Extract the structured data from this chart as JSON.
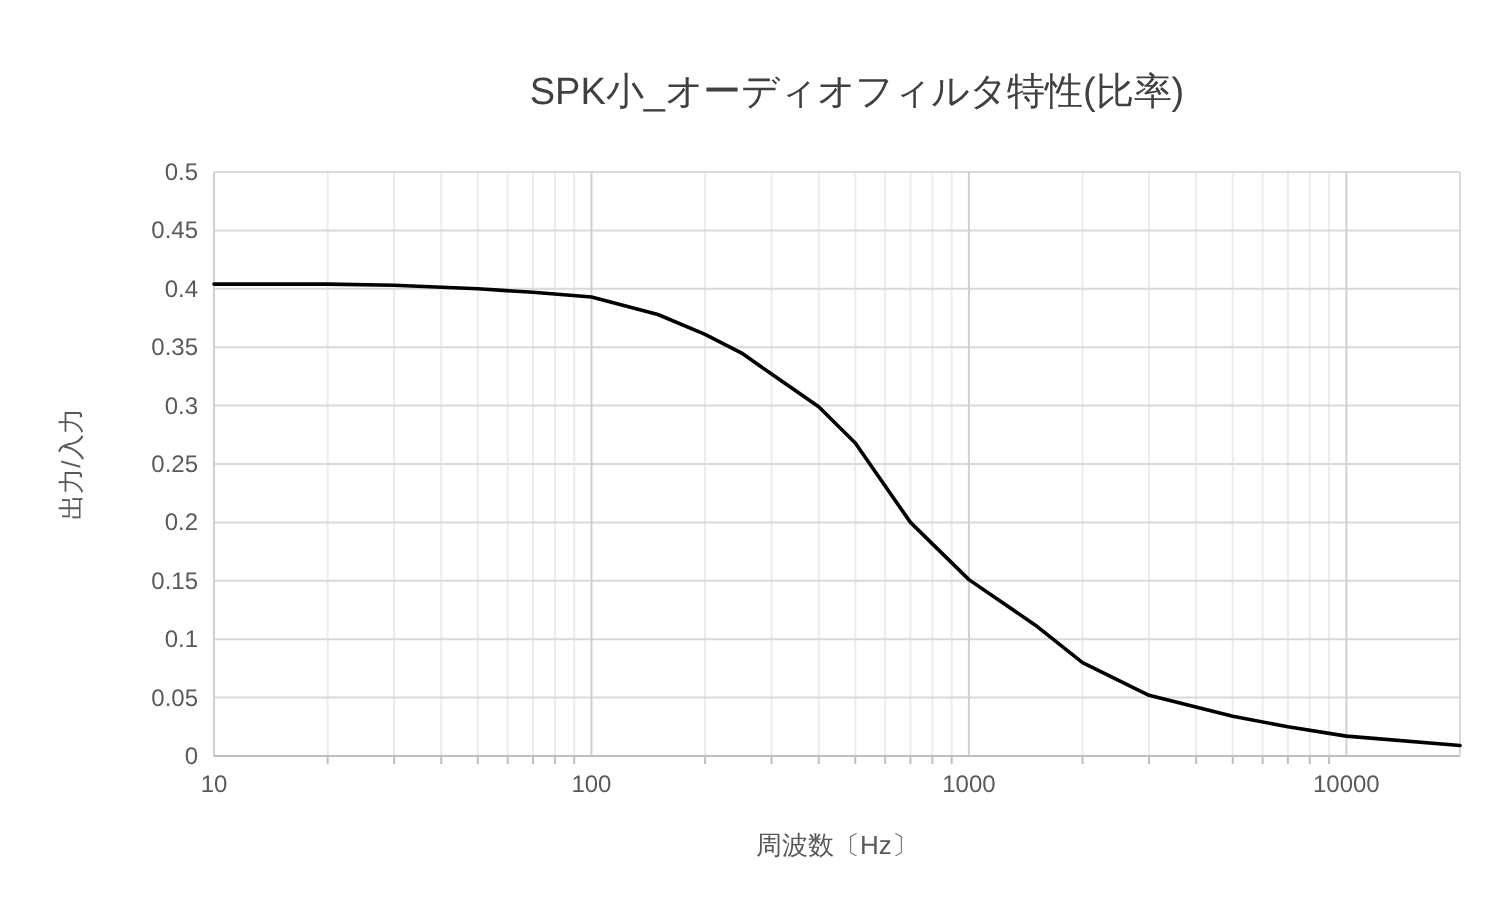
{
  "chart_data": {
    "type": "line",
    "title": "SPK小_オーディオフィルタ特性(比率)",
    "xlabel": "周波数〔Hz〕",
    "ylabel": "出力/入力",
    "log": "x",
    "grid": true,
    "marker": "none",
    "line_style": "solid",
    "xlim": [
      10,
      20000
    ],
    "xticks": [
      10,
      100,
      1000,
      10000
    ],
    "ylim": [
      0,
      0.5
    ],
    "yticks": [
      0,
      0.05,
      0.1,
      0.15,
      0.2,
      0.25,
      0.3,
      0.35,
      0.4,
      0.45,
      0.5
    ],
    "series": [
      {
        "color": "#000000",
        "x": [
          10,
          20,
          30,
          50,
          70,
          100,
          150,
          200,
          250,
          300,
          400,
          500,
          700,
          1000,
          1500,
          2000,
          3000,
          5000,
          7000,
          10000,
          20000
        ],
        "values": [
          0.404,
          0.404,
          0.403,
          0.4,
          0.397,
          0.393,
          0.378,
          0.361,
          0.345,
          0.327,
          0.299,
          0.268,
          0.2,
          0.151,
          0.112,
          0.08,
          0.052,
          0.034,
          0.025,
          0.017,
          0.009
        ]
      }
    ]
  }
}
